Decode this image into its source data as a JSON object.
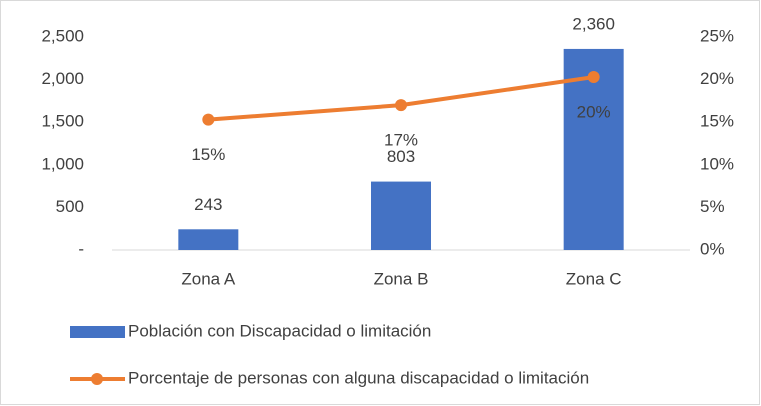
{
  "chart_data": {
    "type": "bar-line",
    "categories": [
      "Zona A",
      "Zona B",
      "Zona C"
    ],
    "series": [
      {
        "name": "Población con Discapacidad o limitación",
        "type": "bar",
        "color": "#4472c4",
        "values": [
          243,
          803,
          2360
        ],
        "value_labels": [
          "243",
          "803",
          "2,360"
        ]
      },
      {
        "name": "Porcentaje de personas con alguna discapacidad o limitación",
        "type": "line",
        "axis": "y2",
        "color": "#ed7d31",
        "values": [
          15.3,
          17.0,
          20.3
        ],
        "value_labels": [
          "15%",
          "17%",
          "20%"
        ]
      }
    ],
    "ylim": [
      0,
      2500
    ],
    "yticks": [
      {
        "value": 0,
        "label": "-"
      },
      500,
      {
        "value": 1000,
        "label": "1,000"
      },
      {
        "value": 1500,
        "label": "1,500"
      },
      {
        "value": 2000,
        "label": "2,000"
      },
      {
        "value": 2500,
        "label": "2,500"
      }
    ],
    "y2lim": [
      0,
      25
    ],
    "y2ticks": [
      {
        "value": 0,
        "label": "0%"
      },
      {
        "value": 5,
        "label": "5%"
      },
      {
        "value": 10,
        "label": "10%"
      },
      {
        "value": 15,
        "label": "15%"
      },
      {
        "value": 20,
        "label": "20%"
      },
      {
        "value": 25,
        "label": "25%"
      }
    ],
    "legend": "bottom"
  }
}
